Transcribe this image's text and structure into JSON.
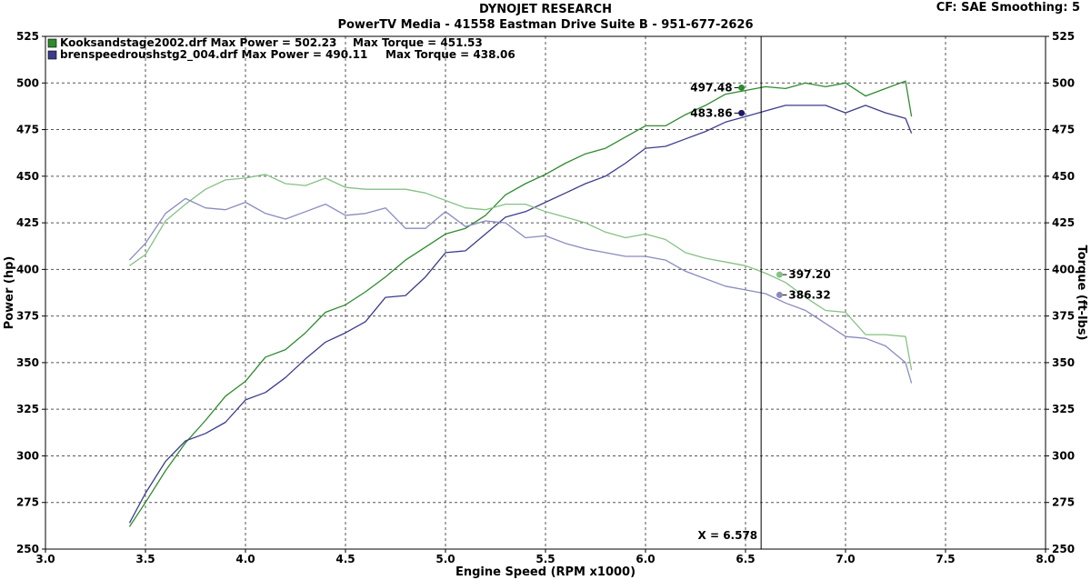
{
  "header": {
    "title": "DYNOJET RESEARCH",
    "subtitle": "PowerTV Media - 41558 Eastman Drive Suite B - 951-677-2626",
    "settings": "CF: SAE  Smoothing: 5"
  },
  "chart_data": {
    "type": "line",
    "xlabel": "Engine Speed (RPM x1000)",
    "ylabel_left": "Power (hp)",
    "ylabel_right": "Torque (ft-lbs)",
    "xlim": [
      3.0,
      8.0
    ],
    "ylim": [
      250,
      525
    ],
    "x_ticks": [
      "3.0",
      "3.5",
      "4.0",
      "4.5",
      "5.0",
      "5.5",
      "6.0",
      "6.5",
      "7.0",
      "7.5",
      "8.0"
    ],
    "y_ticks": [
      "250",
      "275",
      "300",
      "325",
      "350",
      "375",
      "400",
      "425",
      "450",
      "475",
      "500",
      "525"
    ],
    "grid": true,
    "cursor": {
      "x": 6.578,
      "label": "X = 6.578"
    },
    "legend": [
      {
        "name": "Kooksandstage2002.drf",
        "max_power_label": "Max Power = 502.23",
        "max_torque_label": "Max Torque = 451.53",
        "color": "#2e8b2e"
      },
      {
        "name": "brenspeedroushstg2_004.drf",
        "max_power_label": "Max Power = 490.11",
        "max_torque_label": "Max Torque = 438.06",
        "color": "#3c3c8c"
      }
    ],
    "series": [
      {
        "name": "Kooksandstage2002.drf",
        "measure": "Power",
        "color": "#2e8b2e",
        "x": [
          3.42,
          3.5,
          3.6,
          3.7,
          3.8,
          3.9,
          4.0,
          4.1,
          4.2,
          4.3,
          4.4,
          4.5,
          4.6,
          4.7,
          4.8,
          4.9,
          5.0,
          5.1,
          5.2,
          5.3,
          5.4,
          5.5,
          5.6,
          5.7,
          5.8,
          5.9,
          6.0,
          6.1,
          6.2,
          6.3,
          6.4,
          6.5,
          6.6,
          6.7,
          6.8,
          6.9,
          7.0,
          7.1,
          7.2,
          7.3,
          7.33
        ],
        "y": [
          262,
          275,
          292,
          307,
          319,
          332,
          340,
          353,
          357,
          366,
          377,
          381,
          388,
          396,
          405,
          412,
          419,
          422,
          429,
          440,
          446,
          451,
          457,
          462,
          465,
          471,
          477,
          477,
          483,
          488,
          494,
          496,
          498,
          497,
          500,
          498,
          500,
          493,
          497,
          501,
          482
        ]
      },
      {
        "name": "brenspeedroushstg2_004.drf",
        "measure": "Power",
        "color": "#3c3c8c",
        "x": [
          3.42,
          3.5,
          3.6,
          3.7,
          3.8,
          3.9,
          4.0,
          4.1,
          4.2,
          4.3,
          4.4,
          4.5,
          4.6,
          4.7,
          4.8,
          4.9,
          5.0,
          5.1,
          5.2,
          5.3,
          5.4,
          5.5,
          5.6,
          5.7,
          5.8,
          5.9,
          6.0,
          6.1,
          6.2,
          6.3,
          6.4,
          6.5,
          6.6,
          6.7,
          6.8,
          6.9,
          7.0,
          7.1,
          7.2,
          7.3,
          7.33
        ],
        "y": [
          264,
          280,
          297,
          308,
          312,
          318,
          330,
          334,
          342,
          352,
          361,
          366,
          372,
          385,
          386,
          396,
          409,
          410,
          419,
          428,
          431,
          436,
          441,
          446,
          450,
          457,
          465,
          466,
          470,
          474,
          479,
          482,
          485,
          488,
          488,
          488,
          484,
          488,
          484,
          481,
          473
        ]
      },
      {
        "name": "Kooksandstage2002.drf",
        "measure": "Torque",
        "color": "#86c186",
        "x": [
          3.42,
          3.5,
          3.6,
          3.7,
          3.8,
          3.9,
          4.0,
          4.1,
          4.2,
          4.3,
          4.4,
          4.5,
          4.6,
          4.7,
          4.8,
          4.9,
          5.0,
          5.1,
          5.2,
          5.3,
          5.4,
          5.5,
          5.6,
          5.7,
          5.8,
          5.9,
          6.0,
          6.1,
          6.2,
          6.3,
          6.4,
          6.5,
          6.6,
          6.7,
          6.8,
          6.9,
          7.0,
          7.1,
          7.2,
          7.3,
          7.33
        ],
        "y": [
          402,
          408,
          426,
          435,
          443,
          448,
          449,
          451,
          446,
          445,
          449,
          444,
          443,
          443,
          443,
          441,
          437,
          433,
          432,
          435,
          435,
          431,
          428,
          425,
          420,
          417,
          419,
          416,
          409,
          406,
          404,
          402,
          398,
          393,
          385,
          378,
          377,
          365,
          365,
          364,
          346
        ]
      },
      {
        "name": "brenspeedroushstg2_004.drf",
        "measure": "Torque",
        "color": "#8a8ac0",
        "x": [
          3.42,
          3.5,
          3.6,
          3.7,
          3.8,
          3.9,
          4.0,
          4.1,
          4.2,
          4.3,
          4.4,
          4.5,
          4.6,
          4.7,
          4.8,
          4.9,
          5.0,
          5.1,
          5.2,
          5.3,
          5.4,
          5.5,
          5.6,
          5.7,
          5.8,
          5.9,
          6.0,
          6.1,
          6.2,
          6.3,
          6.4,
          6.5,
          6.6,
          6.7,
          6.8,
          6.9,
          7.0,
          7.1,
          7.2,
          7.3,
          7.33
        ],
        "y": [
          405,
          414,
          430,
          438,
          433,
          432,
          436,
          430,
          427,
          431,
          435,
          429,
          430,
          433,
          422,
          422,
          431,
          423,
          426,
          425,
          417,
          418,
          414,
          411,
          409,
          407,
          407,
          405,
          399,
          395,
          391,
          389,
          387,
          382,
          378,
          371,
          364,
          363,
          359,
          350,
          339
        ]
      }
    ],
    "markers": [
      {
        "x": 6.48,
        "y": 497.48,
        "label": "497.48",
        "color": "#2e8b2e",
        "label_side": "left"
      },
      {
        "x": 6.48,
        "y": 483.86,
        "label": "483.86",
        "color": "#1a1a6a",
        "label_side": "left"
      },
      {
        "x": 6.67,
        "y": 397.2,
        "label": "397.20",
        "color": "#86c186",
        "label_side": "right"
      },
      {
        "x": 6.67,
        "y": 386.32,
        "label": "386.32",
        "color": "#8a8ac0",
        "label_side": "right"
      }
    ]
  }
}
